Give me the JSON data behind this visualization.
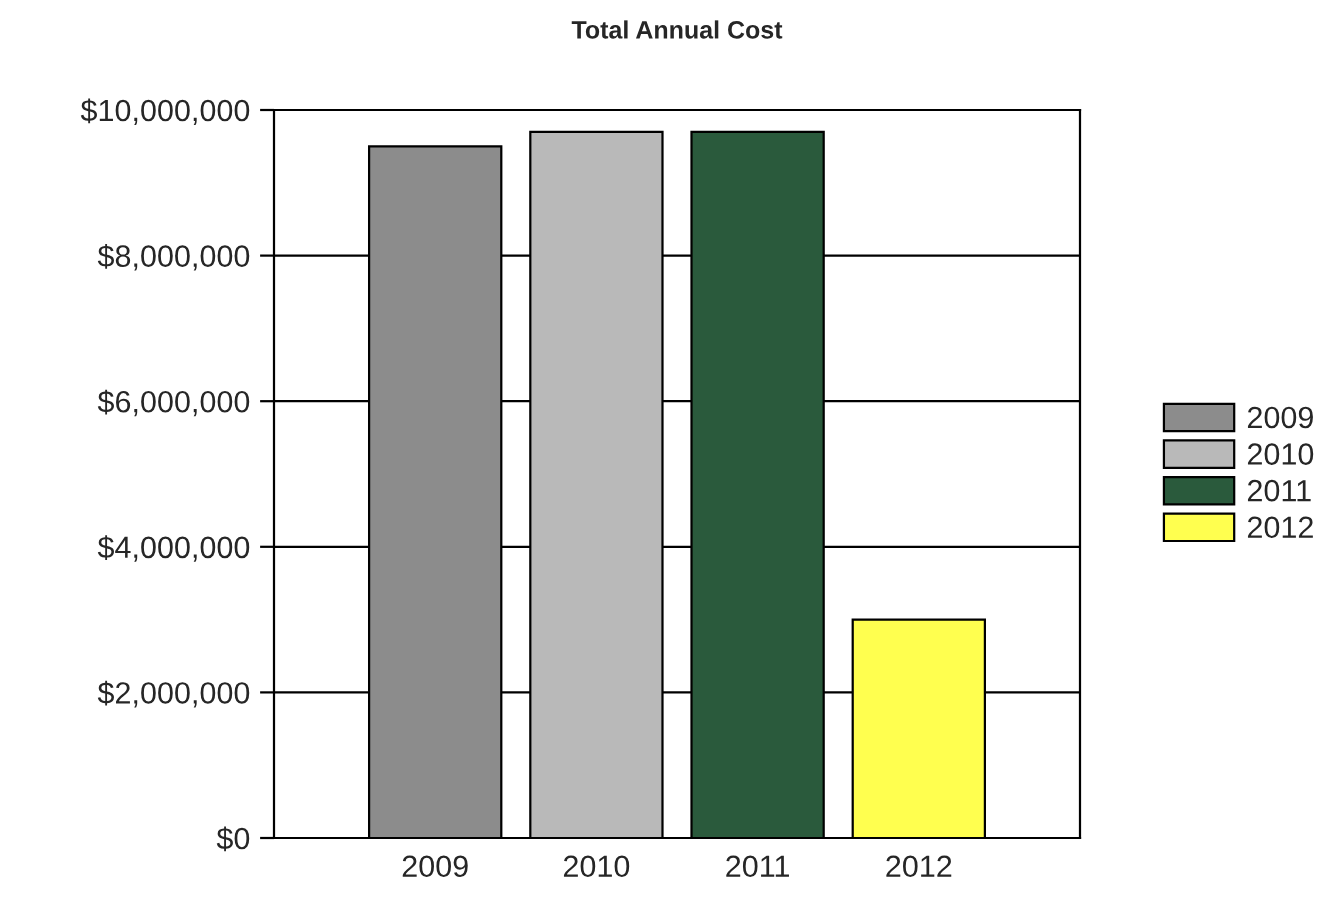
{
  "chart_data": {
    "type": "bar",
    "title": "Total Annual Cost",
    "categories": [
      "2009",
      "2010",
      "2011",
      "2012"
    ],
    "series": [
      {
        "name": "2009",
        "color": "#8c8c8c",
        "values": [
          9500000,
          null,
          null,
          null
        ]
      },
      {
        "name": "2010",
        "color": "#b9b9b9",
        "values": [
          null,
          9700000,
          null,
          null
        ]
      },
      {
        "name": "2011",
        "color": "#2a5a3c",
        "values": [
          null,
          null,
          9700000,
          null
        ]
      },
      {
        "name": "2012",
        "color": "#ffff4f",
        "values": [
          null,
          null,
          null,
          3000000
        ]
      }
    ],
    "ylim": [
      0,
      10000000
    ],
    "yticks": [
      {
        "value": 0,
        "label": "$0"
      },
      {
        "value": 2000000,
        "label": "$2,000,000"
      },
      {
        "value": 4000000,
        "label": "$4,000,000"
      },
      {
        "value": 6000000,
        "label": "$6,000,000"
      },
      {
        "value": 8000000,
        "label": "$8,000,000"
      },
      {
        "value": 10000000,
        "label": "$10,000,000"
      }
    ],
    "grid": "y",
    "legend": "right"
  }
}
